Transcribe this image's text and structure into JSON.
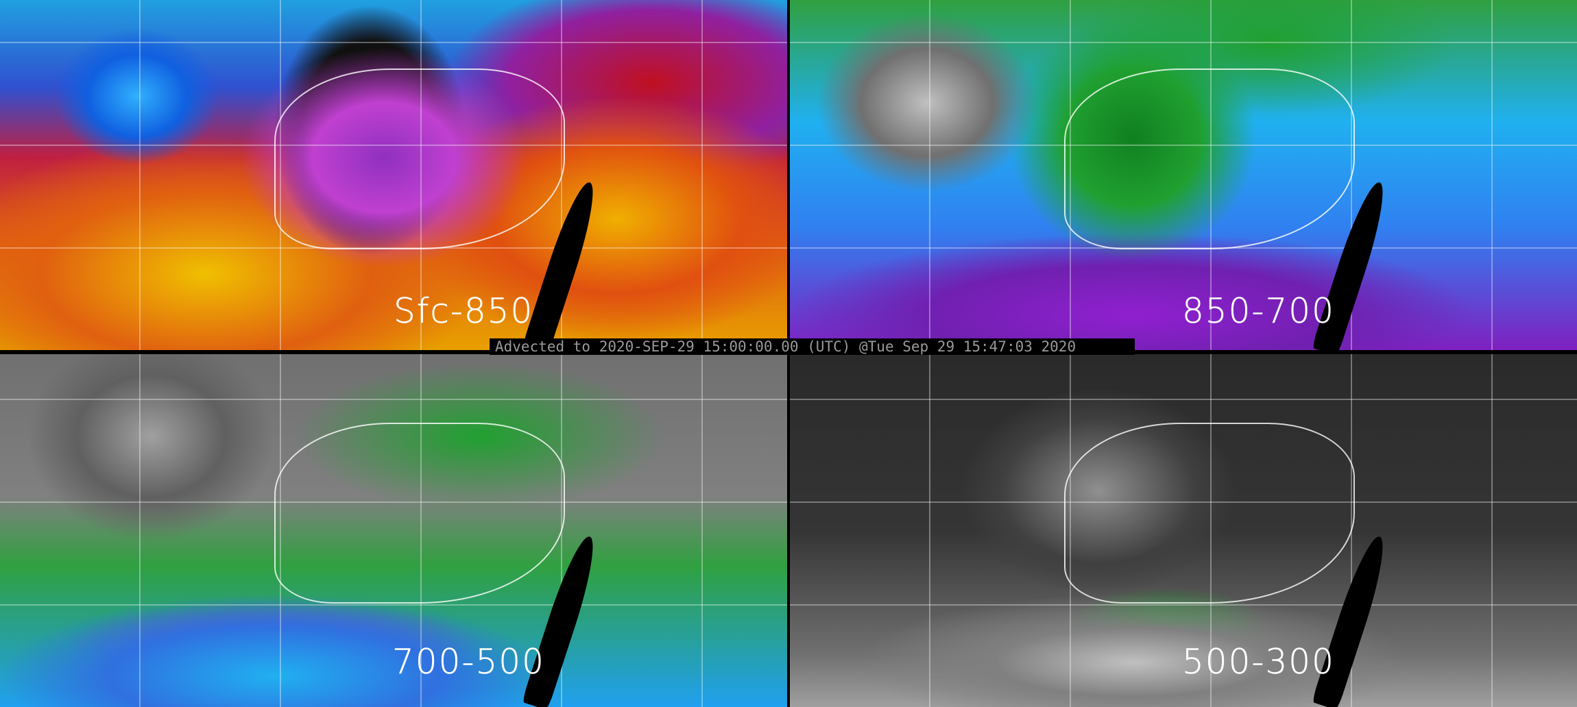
{
  "panels": [
    {
      "label": "Sfc-850",
      "layer": "surface to 850 hPa"
    },
    {
      "label": "850-700"
    },
    {
      "label": "700-500"
    },
    {
      "label": "500-300"
    }
  ],
  "timestamp": "Advected to 2020-SEP-29 15:00:00.00 (UTC) @Tue Sep 29 15:47:03 2020",
  "colors": {
    "dry": "#000000",
    "low": "#e8a000",
    "mid": "#9030c0",
    "high": "#20b0f0",
    "grey": "#808080",
    "green": "#20a030"
  }
}
